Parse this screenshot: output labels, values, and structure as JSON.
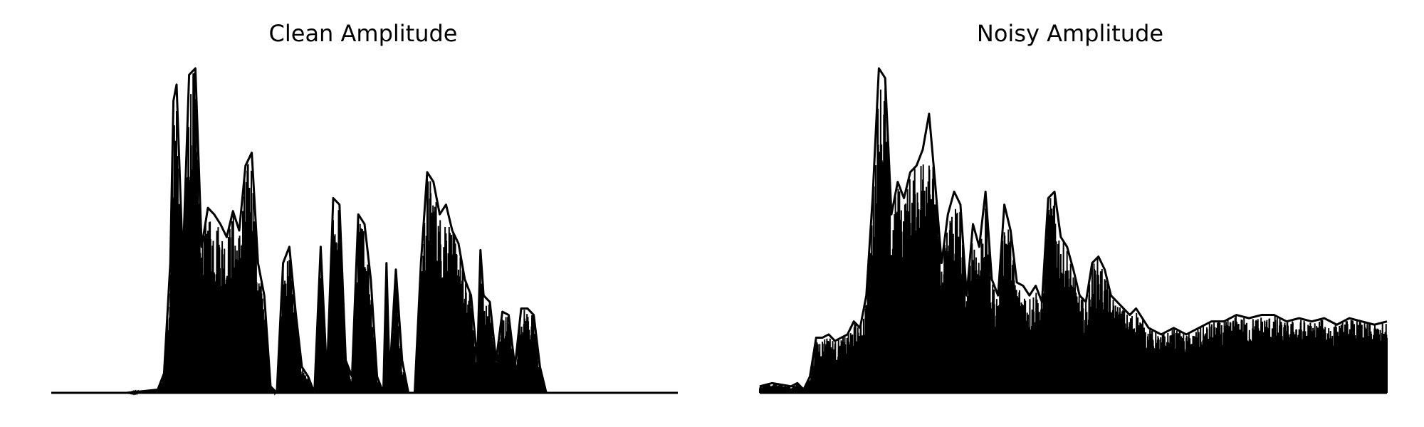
{
  "chart_data": [
    {
      "type": "area",
      "title": "Clean Amplitude",
      "color": "#000000",
      "axes_visible": false,
      "grid": false,
      "ylim": [
        0,
        1
      ],
      "x_range": [
        0,
        1
      ],
      "envelope": [
        [
          0.0,
          0.0
        ],
        [
          0.12,
          0.0
        ],
        [
          0.17,
          0.01
        ],
        [
          0.18,
          0.06
        ],
        [
          0.19,
          0.4
        ],
        [
          0.195,
          0.9
        ],
        [
          0.2,
          0.95
        ],
        [
          0.21,
          0.4
        ],
        [
          0.22,
          0.98
        ],
        [
          0.23,
          1.0
        ],
        [
          0.24,
          0.45
        ],
        [
          0.25,
          0.57
        ],
        [
          0.26,
          0.55
        ],
        [
          0.27,
          0.52
        ],
        [
          0.28,
          0.48
        ],
        [
          0.29,
          0.56
        ],
        [
          0.3,
          0.5
        ],
        [
          0.31,
          0.7
        ],
        [
          0.32,
          0.74
        ],
        [
          0.33,
          0.4
        ],
        [
          0.34,
          0.3
        ],
        [
          0.35,
          0.02
        ],
        [
          0.36,
          0.0
        ],
        [
          0.37,
          0.4
        ],
        [
          0.38,
          0.45
        ],
        [
          0.39,
          0.25
        ],
        [
          0.4,
          0.08
        ],
        [
          0.41,
          0.05
        ],
        [
          0.42,
          0.0
        ],
        [
          0.43,
          0.45
        ],
        [
          0.44,
          0.05
        ],
        [
          0.45,
          0.6
        ],
        [
          0.46,
          0.58
        ],
        [
          0.47,
          0.1
        ],
        [
          0.48,
          0.05
        ],
        [
          0.49,
          0.55
        ],
        [
          0.5,
          0.52
        ],
        [
          0.51,
          0.35
        ],
        [
          0.52,
          0.05
        ],
        [
          0.53,
          0.0
        ],
        [
          0.535,
          0.4
        ],
        [
          0.54,
          0.05
        ],
        [
          0.55,
          0.38
        ],
        [
          0.56,
          0.1
        ],
        [
          0.57,
          0.0
        ],
        [
          0.58,
          0.0
        ],
        [
          0.59,
          0.4
        ],
        [
          0.6,
          0.68
        ],
        [
          0.61,
          0.65
        ],
        [
          0.62,
          0.55
        ],
        [
          0.63,
          0.58
        ],
        [
          0.64,
          0.5
        ],
        [
          0.65,
          0.46
        ],
        [
          0.66,
          0.35
        ],
        [
          0.67,
          0.3
        ],
        [
          0.68,
          0.1
        ],
        [
          0.685,
          0.44
        ],
        [
          0.69,
          0.3
        ],
        [
          0.7,
          0.28
        ],
        [
          0.71,
          0.1
        ],
        [
          0.72,
          0.25
        ],
        [
          0.73,
          0.24
        ],
        [
          0.74,
          0.08
        ],
        [
          0.75,
          0.26
        ],
        [
          0.76,
          0.26
        ],
        [
          0.77,
          0.24
        ],
        [
          0.78,
          0.08
        ],
        [
          0.79,
          0.0
        ],
        [
          0.85,
          0.0
        ],
        [
          1.0,
          0.0
        ]
      ]
    },
    {
      "type": "area",
      "title": "Noisy Amplitude",
      "color": "#000000",
      "axes_visible": false,
      "grid": false,
      "ylim": [
        0,
        1
      ],
      "x_range": [
        0,
        1
      ],
      "envelope": [
        [
          0.0,
          0.02
        ],
        [
          0.02,
          0.03
        ],
        [
          0.05,
          0.02
        ],
        [
          0.06,
          0.03
        ],
        [
          0.07,
          0.01
        ],
        [
          0.08,
          0.05
        ],
        [
          0.09,
          0.17
        ],
        [
          0.1,
          0.17
        ],
        [
          0.11,
          0.18
        ],
        [
          0.12,
          0.16
        ],
        [
          0.13,
          0.17
        ],
        [
          0.14,
          0.18
        ],
        [
          0.15,
          0.22
        ],
        [
          0.16,
          0.2
        ],
        [
          0.17,
          0.3
        ],
        [
          0.18,
          0.6
        ],
        [
          0.19,
          1.0
        ],
        [
          0.2,
          0.97
        ],
        [
          0.21,
          0.55
        ],
        [
          0.22,
          0.65
        ],
        [
          0.23,
          0.6
        ],
        [
          0.24,
          0.68
        ],
        [
          0.25,
          0.7
        ],
        [
          0.26,
          0.75
        ],
        [
          0.27,
          0.86
        ],
        [
          0.28,
          0.64
        ],
        [
          0.29,
          0.4
        ],
        [
          0.3,
          0.55
        ],
        [
          0.31,
          0.62
        ],
        [
          0.32,
          0.58
        ],
        [
          0.33,
          0.3
        ],
        [
          0.34,
          0.52
        ],
        [
          0.35,
          0.45
        ],
        [
          0.36,
          0.62
        ],
        [
          0.37,
          0.35
        ],
        [
          0.38,
          0.3
        ],
        [
          0.39,
          0.58
        ],
        [
          0.4,
          0.5
        ],
        [
          0.41,
          0.34
        ],
        [
          0.42,
          0.33
        ],
        [
          0.43,
          0.3
        ],
        [
          0.44,
          0.33
        ],
        [
          0.45,
          0.28
        ],
        [
          0.46,
          0.6
        ],
        [
          0.47,
          0.62
        ],
        [
          0.48,
          0.48
        ],
        [
          0.49,
          0.45
        ],
        [
          0.5,
          0.38
        ],
        [
          0.51,
          0.3
        ],
        [
          0.52,
          0.28
        ],
        [
          0.53,
          0.4
        ],
        [
          0.54,
          0.42
        ],
        [
          0.55,
          0.38
        ],
        [
          0.56,
          0.3
        ],
        [
          0.57,
          0.28
        ],
        [
          0.58,
          0.26
        ],
        [
          0.59,
          0.24
        ],
        [
          0.6,
          0.26
        ],
        [
          0.62,
          0.2
        ],
        [
          0.64,
          0.18
        ],
        [
          0.66,
          0.2
        ],
        [
          0.68,
          0.18
        ],
        [
          0.7,
          0.2
        ],
        [
          0.72,
          0.22
        ],
        [
          0.74,
          0.22
        ],
        [
          0.76,
          0.24
        ],
        [
          0.78,
          0.23
        ],
        [
          0.8,
          0.24
        ],
        [
          0.82,
          0.24
        ],
        [
          0.84,
          0.22
        ],
        [
          0.86,
          0.23
        ],
        [
          0.88,
          0.22
        ],
        [
          0.9,
          0.23
        ],
        [
          0.92,
          0.21
        ],
        [
          0.94,
          0.23
        ],
        [
          0.96,
          0.22
        ],
        [
          0.98,
          0.21
        ],
        [
          1.0,
          0.22
        ]
      ]
    }
  ]
}
